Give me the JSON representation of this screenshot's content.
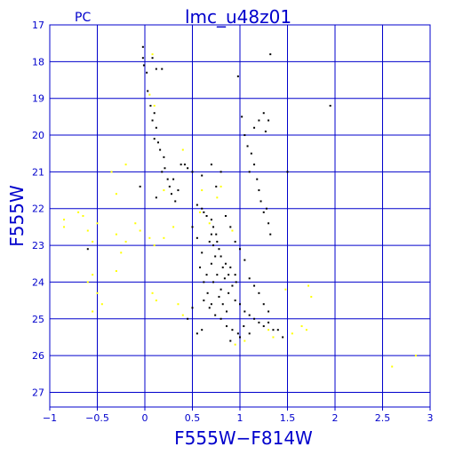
{
  "chart_data": {
    "type": "scatter",
    "title": "lmc_u48z01",
    "corner_label": "PC",
    "xlabel": "F555W−F814W",
    "ylabel": "F555W",
    "xlim": [
      -1,
      3
    ],
    "ylim": [
      27.4,
      17
    ],
    "y_inverted": true,
    "grid": true,
    "xticks": [
      -1,
      -0.5,
      0,
      0.5,
      1,
      1.5,
      2,
      2.5,
      3
    ],
    "xtick_labels": [
      "−1",
      "−0.5",
      "0",
      "0.5",
      "1",
      "1.5",
      "2",
      "2.5",
      "3"
    ],
    "yticks": [
      17,
      18,
      19,
      20,
      21,
      22,
      23,
      24,
      25,
      26,
      27
    ],
    "ytick_labels": [
      "17",
      "18",
      "19",
      "20",
      "21",
      "22",
      "23",
      "24",
      "25",
      "26",
      "27"
    ],
    "colors": {
      "axis": "#0000cc",
      "grid": "#0000cc",
      "stars": "#000000",
      "highlight": "#ffff00"
    },
    "series": [
      {
        "marker": "black",
        "points": [
          [
            -0.02,
            17.6
          ],
          [
            -0.02,
            17.9
          ],
          [
            -0.01,
            18.1
          ],
          [
            0.02,
            18.3
          ],
          [
            0.08,
            17.9
          ],
          [
            0.12,
            18.2
          ],
          [
            0.18,
            18.2
          ],
          [
            0.03,
            18.8
          ],
          [
            0.06,
            19.2
          ],
          [
            0.1,
            19.4
          ],
          [
            0.08,
            19.6
          ],
          [
            0.12,
            19.8
          ],
          [
            0.1,
            20.1
          ],
          [
            0.14,
            20.2
          ],
          [
            0.16,
            20.4
          ],
          [
            0.2,
            20.6
          ],
          [
            0.21,
            20.9
          ],
          [
            0.24,
            21.2
          ],
          [
            0.26,
            21.4
          ],
          [
            0.28,
            21.6
          ],
          [
            0.32,
            21.8
          ],
          [
            0.35,
            21.5
          ],
          [
            0.38,
            20.8
          ],
          [
            0.42,
            20.8
          ],
          [
            0.45,
            20.9
          ],
          [
            0.5,
            21.0
          ],
          [
            0.6,
            21.1
          ],
          [
            0.7,
            20.8
          ],
          [
            0.75,
            21.4
          ],
          [
            0.8,
            21.0
          ],
          [
            0.55,
            21.9
          ],
          [
            0.6,
            22.0
          ],
          [
            0.62,
            22.1
          ],
          [
            0.65,
            22.2
          ],
          [
            0.7,
            22.3
          ],
          [
            0.72,
            22.5
          ],
          [
            0.75,
            22.7
          ],
          [
            0.68,
            22.9
          ],
          [
            0.72,
            23.0
          ],
          [
            0.78,
            23.1
          ],
          [
            0.8,
            23.3
          ],
          [
            0.85,
            23.5
          ],
          [
            0.9,
            23.6
          ],
          [
            0.95,
            23.8
          ],
          [
            0.7,
            23.5
          ],
          [
            0.65,
            23.8
          ],
          [
            0.72,
            24.0
          ],
          [
            0.8,
            24.2
          ],
          [
            0.88,
            24.3
          ],
          [
            0.95,
            24.5
          ],
          [
            1.0,
            24.6
          ],
          [
            1.05,
            24.8
          ],
          [
            1.1,
            24.9
          ],
          [
            1.15,
            25.0
          ],
          [
            1.2,
            25.1
          ],
          [
            1.25,
            25.2
          ],
          [
            1.3,
            25.1
          ],
          [
            1.35,
            25.3
          ],
          [
            0.62,
            24.5
          ],
          [
            0.68,
            24.7
          ],
          [
            0.74,
            24.9
          ],
          [
            0.8,
            25.0
          ],
          [
            0.86,
            25.2
          ],
          [
            0.92,
            25.3
          ],
          [
            0.98,
            25.4
          ],
          [
            1.04,
            25.2
          ],
          [
            0.98,
            18.4
          ],
          [
            1.02,
            19.5
          ],
          [
            1.05,
            20.0
          ],
          [
            1.08,
            20.3
          ],
          [
            1.12,
            20.5
          ],
          [
            1.15,
            20.8
          ],
          [
            1.18,
            21.2
          ],
          [
            1.2,
            21.5
          ],
          [
            1.22,
            21.8
          ],
          [
            1.25,
            22.1
          ],
          [
            1.28,
            22.0
          ],
          [
            1.3,
            22.4
          ],
          [
            1.32,
            22.7
          ],
          [
            1.1,
            21.0
          ],
          [
            1.15,
            19.8
          ],
          [
            1.2,
            19.6
          ],
          [
            1.25,
            19.4
          ],
          [
            1.3,
            19.6
          ],
          [
            1.27,
            19.9
          ],
          [
            1.32,
            17.8
          ],
          [
            1.5,
            21.0
          ],
          [
            1.95,
            19.2
          ],
          [
            0.5,
            22.5
          ],
          [
            0.55,
            22.8
          ],
          [
            0.6,
            23.2
          ],
          [
            0.58,
            23.6
          ],
          [
            0.62,
            24.0
          ],
          [
            0.66,
            24.3
          ],
          [
            0.7,
            24.6
          ],
          [
            0.5,
            24.7
          ],
          [
            0.45,
            25.0
          ],
          [
            0.85,
            22.2
          ],
          [
            0.9,
            22.5
          ],
          [
            0.95,
            22.9
          ],
          [
            1.0,
            23.1
          ],
          [
            1.05,
            23.4
          ],
          [
            1.1,
            23.9
          ],
          [
            1.15,
            24.1
          ],
          [
            1.2,
            24.3
          ],
          [
            1.25,
            24.6
          ],
          [
            1.3,
            24.8
          ],
          [
            1.4,
            25.3
          ],
          [
            1.45,
            25.5
          ],
          [
            0.55,
            25.4
          ],
          [
            0.6,
            25.3
          ],
          [
            0.9,
            25.6
          ],
          [
            1.0,
            25.5
          ],
          [
            1.1,
            25.4
          ],
          [
            0.78,
            24.4
          ],
          [
            0.82,
            24.6
          ],
          [
            0.86,
            24.8
          ],
          [
            0.76,
            23.8
          ],
          [
            0.84,
            23.9
          ],
          [
            0.92,
            24.1
          ],
          [
            0.74,
            23.3
          ],
          [
            0.82,
            23.6
          ],
          [
            0.88,
            23.8
          ],
          [
            0.96,
            24.0
          ],
          [
            0.7,
            22.7
          ],
          [
            0.76,
            22.9
          ],
          [
            -0.6,
            23.1
          ],
          [
            -0.05,
            21.4
          ],
          [
            0.12,
            21.7
          ],
          [
            0.3,
            21.2
          ],
          [
            0.18,
            21.0
          ]
        ]
      },
      {
        "marker": "yellow",
        "points": [
          [
            -0.85,
            22.3
          ],
          [
            -0.7,
            22.1
          ],
          [
            -0.65,
            22.2
          ],
          [
            -0.6,
            22.6
          ],
          [
            -0.55,
            22.9
          ],
          [
            -0.5,
            22.4
          ],
          [
            -0.3,
            22.7
          ],
          [
            -0.25,
            23.2
          ],
          [
            -0.2,
            22.9
          ],
          [
            -0.1,
            22.4
          ],
          [
            -0.05,
            22.6
          ],
          [
            0.05,
            22.8
          ],
          [
            0.1,
            23.0
          ],
          [
            0.2,
            22.8
          ],
          [
            0.3,
            22.5
          ],
          [
            -0.3,
            21.6
          ],
          [
            -0.35,
            21.0
          ],
          [
            -0.2,
            20.8
          ],
          [
            -0.55,
            23.8
          ],
          [
            -0.6,
            24.0
          ],
          [
            -0.5,
            24.3
          ],
          [
            -0.45,
            24.6
          ],
          [
            -0.3,
            23.7
          ],
          [
            0.08,
            24.3
          ],
          [
            0.12,
            24.5
          ],
          [
            0.35,
            24.6
          ],
          [
            0.4,
            24.9
          ],
          [
            -0.55,
            24.8
          ],
          [
            0.1,
            19.2
          ],
          [
            0.05,
            18.9
          ],
          [
            0.08,
            17.8
          ],
          [
            0.2,
            21.5
          ],
          [
            0.4,
            20.4
          ],
          [
            0.6,
            21.5
          ],
          [
            0.68,
            22.4
          ],
          [
            0.76,
            21.7
          ],
          [
            0.8,
            21.4
          ],
          [
            1.3,
            25.3
          ],
          [
            1.35,
            25.5
          ],
          [
            1.48,
            24.2
          ],
          [
            1.55,
            25.4
          ],
          [
            1.65,
            25.2
          ],
          [
            1.72,
            24.1
          ],
          [
            1.75,
            24.4
          ],
          [
            1.7,
            25.3
          ],
          [
            0.95,
            25.7
          ],
          [
            1.05,
            25.6
          ],
          [
            2.6,
            26.3
          ],
          [
            2.85,
            26.0
          ],
          [
            0.58,
            22.1
          ],
          [
            0.92,
            22.6
          ],
          [
            -0.85,
            22.5
          ]
        ]
      }
    ]
  }
}
